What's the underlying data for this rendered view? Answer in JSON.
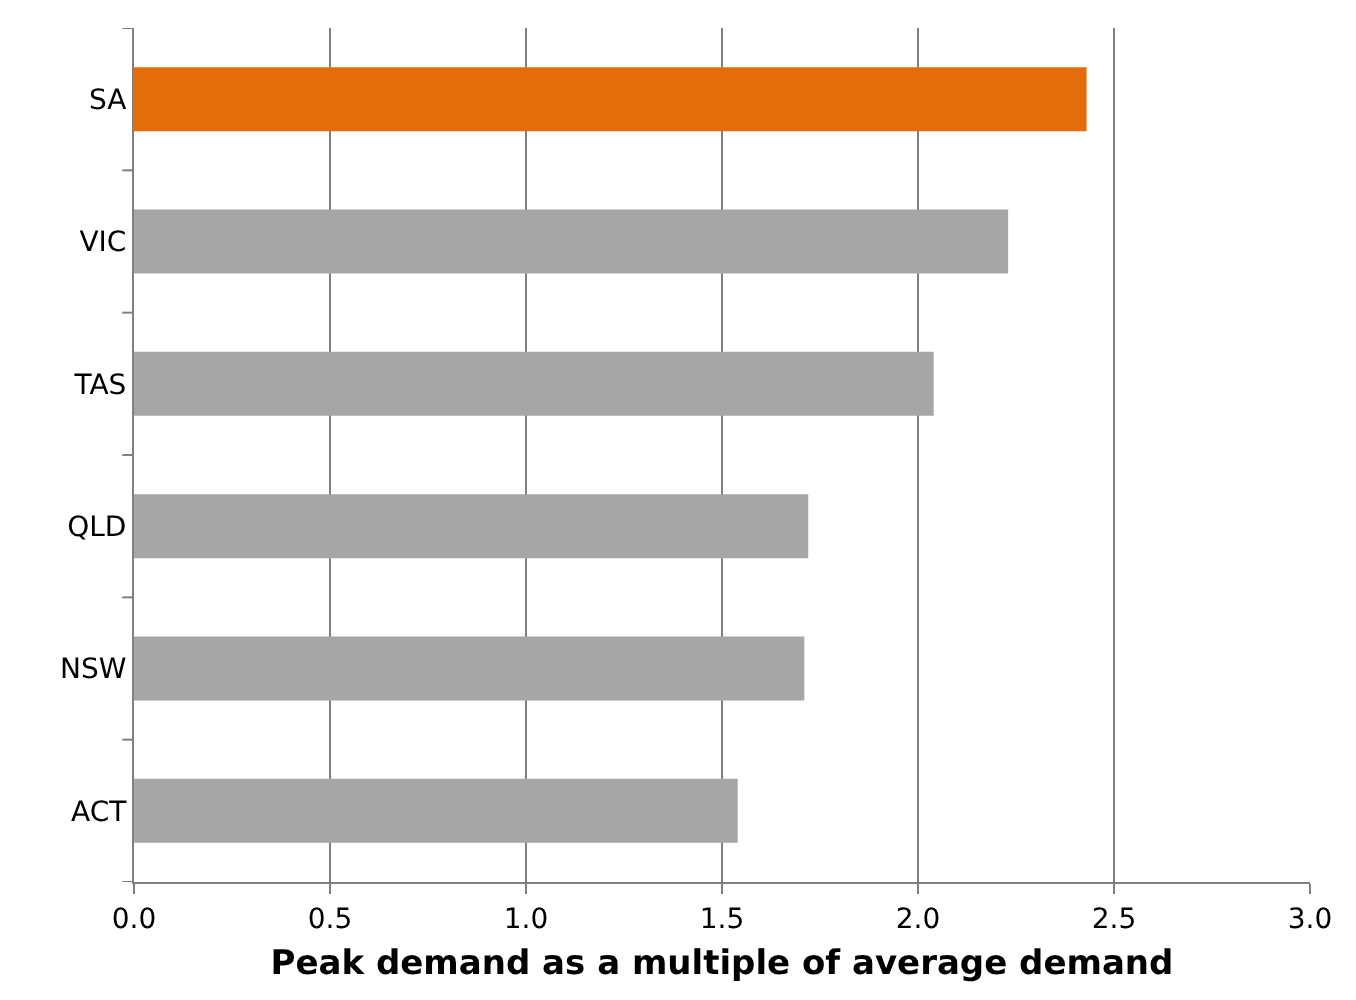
{
  "chart_data": {
    "type": "bar",
    "orientation": "horizontal",
    "xlabel": "Peak demand as a multiple of average demand",
    "categories": [
      "SA",
      "VIC",
      "TAS",
      "QLD",
      "NSW",
      "ACT"
    ],
    "values": [
      2.43,
      2.23,
      2.04,
      1.72,
      1.71,
      1.54
    ],
    "colors": [
      "#e46c0a",
      "#a6a6a6",
      "#a6a6a6",
      "#a6a6a6",
      "#a6a6a6",
      "#a6a6a6"
    ],
    "xlim": [
      0,
      3
    ],
    "xticks": [
      {
        "value": 0,
        "label": "0.0"
      },
      {
        "value": 0.5,
        "label": "0.5"
      },
      {
        "value": 1,
        "label": "1.0"
      },
      {
        "value": 1.5,
        "label": "1.5"
      },
      {
        "value": 2,
        "label": "2.0"
      },
      {
        "value": 2.5,
        "label": "2.5"
      },
      {
        "value": 3,
        "label": "3.0"
      }
    ],
    "grid": "x"
  }
}
